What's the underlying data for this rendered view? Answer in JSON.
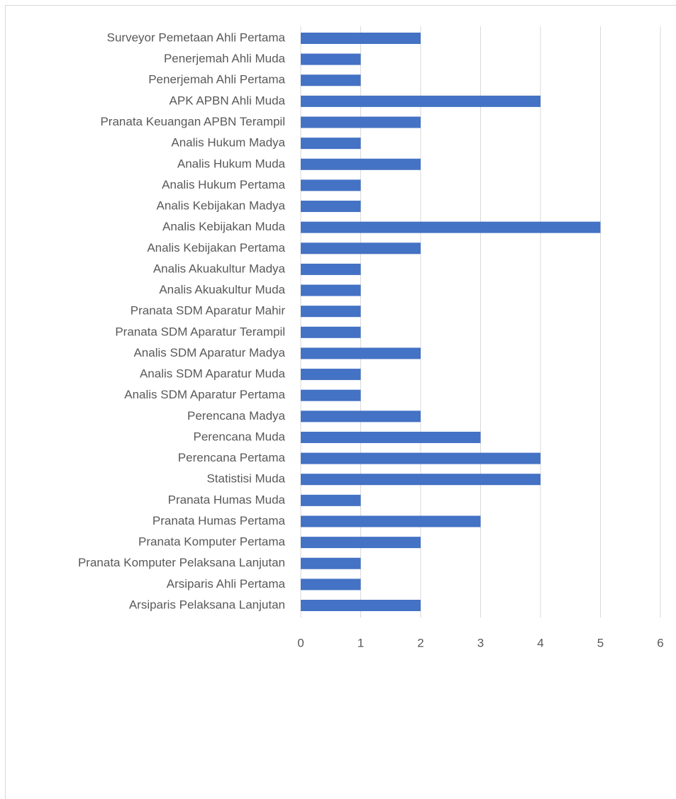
{
  "chart_data": {
    "type": "bar",
    "orientation": "horizontal",
    "categories": [
      "Surveyor Pemetaan Ahli Pertama",
      "Penerjemah Ahli Muda",
      "Penerjemah Ahli Pertama",
      "APK APBN Ahli Muda",
      "Pranata Keuangan APBN Terampil",
      "Analis Hukum Madya",
      "Analis Hukum Muda",
      "Analis Hukum Pertama",
      "Analis Kebijakan Madya",
      "Analis Kebijakan Muda",
      "Analis Kebijakan Pertama",
      "Analis Akuakultur Madya",
      "Analis Akuakultur Muda",
      "Pranata SDM Aparatur Mahir",
      "Pranata SDM Aparatur Terampil",
      "Analis SDM Aparatur Madya",
      "Analis SDM Aparatur Muda",
      "Analis SDM Aparatur Pertama",
      "Perencana Madya",
      "Perencana Muda",
      "Perencana Pertama",
      "Statistisi Muda",
      "Pranata Humas Muda",
      "Pranata Humas Pertama",
      "Pranata Komputer Pertama",
      "Pranata Komputer Pelaksana Lanjutan",
      "Arsiparis Ahli Pertama",
      "Arsiparis Pelaksana Lanjutan"
    ],
    "values": [
      2,
      1,
      1,
      4,
      2,
      1,
      2,
      1,
      1,
      5,
      2,
      1,
      1,
      1,
      1,
      2,
      1,
      1,
      2,
      3,
      4,
      4,
      1,
      3,
      2,
      1,
      1,
      2
    ],
    "color": "#4472c4",
    "xlim": [
      0,
      6
    ],
    "xticks": [
      0,
      1,
      2,
      3,
      4,
      5,
      6
    ],
    "grid": true
  }
}
